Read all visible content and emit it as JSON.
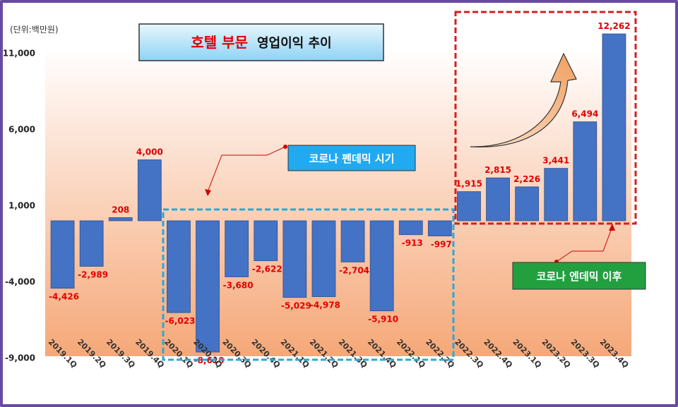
{
  "chart_data": {
    "type": "bar",
    "unit_label": "(단위:백만원)",
    "title_part1": "호텔 부문",
    "title_part2": "영업이익 추이",
    "categories": [
      "2019.1Q",
      "2019.2Q",
      "2019.3Q",
      "2019.4Q",
      "2020.1Q",
      "2020.2Q",
      "2020.3Q",
      "2020.4Q",
      "2021.1Q",
      "2021.2Q",
      "2021.3Q",
      "2021.4Q",
      "2022.1Q",
      "2022.2Q",
      "2022.3Q",
      "2022.4Q",
      "2023.1Q",
      "2023.2Q",
      "2023.3Q",
      "2023.4Q"
    ],
    "values": [
      -4426,
      -2989,
      208,
      4000,
      -6023,
      -8610,
      -3680,
      -2622,
      -5029,
      -4978,
      -2704,
      -5910,
      -913,
      -997,
      1915,
      2815,
      2226,
      3441,
      6494,
      12262
    ],
    "value_labels": [
      "-4,426",
      "-2,989",
      "208",
      "4,000",
      "-6,023",
      "-8,610",
      "-3,680",
      "-2,622",
      "-5,029",
      "-4,978",
      "-2,704",
      "-5,910",
      "-913",
      "-997",
      "1,915",
      "2,815",
      "2,226",
      "3,441",
      "6,494",
      "12,262"
    ],
    "y_ticks": [
      11000,
      6000,
      1000,
      -4000,
      -9000
    ],
    "y_tick_labels": [
      "11,000",
      "6,000",
      "1,000",
      "-4,000",
      "-9,000"
    ],
    "ylim": [
      -9000,
      12262
    ],
    "grid": false,
    "annotations": {
      "pandemic": "코로나 펜데믹 시기",
      "endemic": "코로나 엔데믹 이후"
    },
    "colors": {
      "bar": "#4472c4",
      "label": "#e00000",
      "pandemic_box": "#2aa8d8",
      "endemic_box": "#d42020",
      "endemic_label_bg": "#22a040",
      "pandemic_label_bg": "#22aaf0",
      "title_red": "#e00000"
    }
  }
}
